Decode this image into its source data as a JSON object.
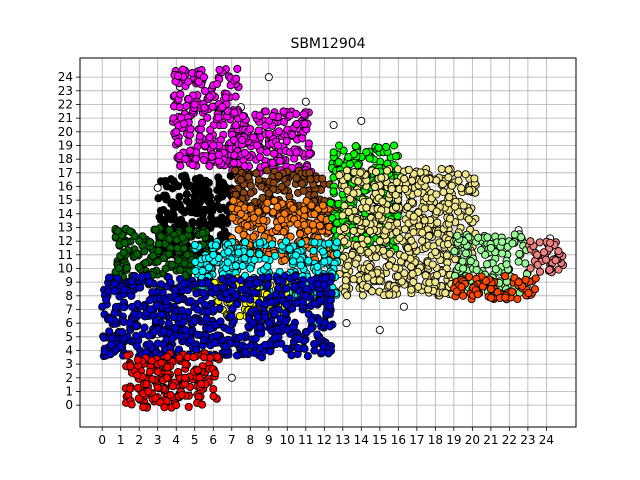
{
  "chart_data": {
    "type": "scatter",
    "title": "SBM12904",
    "xlabel": "",
    "ylabel": "",
    "xlim": [
      -1.2,
      25.6
    ],
    "ylim": [
      -1.6,
      25.4
    ],
    "x_ticks": [
      0,
      1,
      2,
      3,
      4,
      5,
      6,
      7,
      8,
      9,
      10,
      11,
      12,
      13,
      14,
      15,
      16,
      17,
      18,
      19,
      20,
      21,
      22,
      23,
      24
    ],
    "y_ticks": [
      0,
      1,
      2,
      3,
      4,
      5,
      6,
      7,
      8,
      9,
      10,
      11,
      12,
      13,
      14,
      15,
      16,
      17,
      18,
      19,
      20,
      21,
      22,
      23,
      24
    ],
    "grid": true,
    "legend": "none",
    "marker": {
      "shape": "circle",
      "edge_color": "#000000"
    },
    "clusters": [
      {
        "color": "#ff00ff",
        "x": [
          3.8,
          7.4
        ],
        "y": [
          17.5,
          24.6
        ],
        "points": [
          [
            4.0,
            20
          ],
          [
            5.0,
            22
          ],
          [
            6.2,
            23.5
          ],
          [
            7.3,
            24.6
          ],
          [
            4.5,
            18
          ],
          [
            6,
            19
          ],
          [
            6.8,
            21.5
          ],
          [
            5.5,
            24
          ],
          [
            4.2,
            21.8
          ]
        ]
      },
      {
        "color": "#ff00ff",
        "x": [
          7.0,
          11.3
        ],
        "y": [
          16.8,
          21.5
        ],
        "points": [
          [
            8,
            20.2
          ],
          [
            9.5,
            19
          ],
          [
            10.5,
            18.5
          ],
          [
            8.8,
            17.5
          ],
          [
            11,
            17.2
          ]
        ]
      },
      {
        "color": "#000000",
        "x": [
          3.0,
          7.0
        ],
        "y": [
          10.8,
          16.8
        ],
        "points": [
          [
            3.5,
            16
          ],
          [
            5,
            15
          ],
          [
            6.2,
            13.5
          ],
          [
            4.2,
            12
          ],
          [
            6,
            11.2
          ]
        ]
      },
      {
        "color": "#8b4513",
        "x": [
          7.0,
          12.3
        ],
        "y": [
          14.0,
          17.2
        ],
        "points": [
          [
            7.5,
            16.5
          ],
          [
            9,
            15.5
          ],
          [
            10.8,
            16.2
          ],
          [
            12,
            14.5
          ]
        ]
      },
      {
        "color": "#ff7f0e",
        "x": [
          7.0,
          12.8
        ],
        "y": [
          10.3,
          15.0
        ],
        "points": [
          [
            7.5,
            14
          ],
          [
            9.5,
            13
          ],
          [
            11,
            12
          ],
          [
            12.5,
            11
          ]
        ]
      },
      {
        "color": "#00ff00",
        "x": [
          12.3,
          16.0
        ],
        "y": [
          11.2,
          19.0
        ],
        "points": [
          [
            12.5,
            18.5
          ],
          [
            14,
            17
          ],
          [
            15.5,
            15
          ],
          [
            13.5,
            13
          ],
          [
            12.8,
            11.8
          ]
        ]
      },
      {
        "color": "#f0e68c",
        "x": [
          12.8,
          20.2
        ],
        "y": [
          8.0,
          17.3
        ],
        "points": [
          [
            13.5,
            11
          ],
          [
            15,
            12
          ],
          [
            16.5,
            14.5
          ],
          [
            17.5,
            16.5
          ],
          [
            19,
            12
          ],
          [
            20,
            10
          ],
          [
            18,
            9
          ]
        ]
      },
      {
        "color": "#98fb98",
        "x": [
          19.0,
          23.0
        ],
        "y": [
          8.2,
          12.5
        ],
        "points": [
          [
            19.5,
            10
          ],
          [
            21,
            11.5
          ],
          [
            22.5,
            10.5
          ],
          [
            20,
            8.5
          ]
        ]
      },
      {
        "color": "#ff4500",
        "x": [
          19.0,
          23.5
        ],
        "y": [
          7.7,
          9.5
        ],
        "points": [
          [
            19.5,
            8
          ],
          [
            21,
            8.5
          ],
          [
            22.5,
            9
          ]
        ]
      },
      {
        "color": "#f08080",
        "x": [
          23.0,
          25.0
        ],
        "y": [
          9.7,
          12.0
        ],
        "points": [
          [
            23.5,
            11
          ],
          [
            24.5,
            10.6
          ]
        ]
      },
      {
        "color": "#006400",
        "x": [
          0.7,
          5.8
        ],
        "y": [
          8.5,
          13.0
        ],
        "points": [
          [
            1,
            9
          ],
          [
            2,
            12
          ],
          [
            3,
            10.5
          ],
          [
            4.5,
            9.5
          ]
        ]
      },
      {
        "color": "#00ffff",
        "x": [
          5.0,
          12.7
        ],
        "y": [
          8.0,
          12.0
        ],
        "points": [
          [
            6,
            11
          ],
          [
            8,
            10
          ],
          [
            10,
            9.5
          ],
          [
            12,
            10.5
          ],
          [
            11.5,
            6
          ]
        ]
      },
      {
        "color": "#ffff00",
        "x": [
          6.0,
          10.0
        ],
        "y": [
          6.5,
          9.3
        ],
        "points": [
          [
            6.5,
            8.5
          ],
          [
            8,
            7.5
          ],
          [
            9.5,
            8.5
          ]
        ]
      },
      {
        "color": "#0000cd",
        "x": [
          0.0,
          12.5
        ],
        "y": [
          3.5,
          9.5
        ],
        "points": [
          [
            0,
            7.2
          ],
          [
            1.5,
            6
          ],
          [
            3,
            4.5
          ],
          [
            4.5,
            5.5
          ],
          [
            6,
            7
          ],
          [
            7.5,
            5
          ],
          [
            9,
            6
          ],
          [
            11,
            8
          ],
          [
            12,
            8.8
          ]
        ]
      },
      {
        "color": "#ff0000",
        "x": [
          1.2,
          6.3
        ],
        "y": [
          -0.2,
          3.8
        ],
        "points": [
          [
            1.5,
            1.2
          ],
          [
            2.5,
            1
          ],
          [
            3.5,
            2
          ],
          [
            4.5,
            3
          ],
          [
            5.5,
            3.5
          ],
          [
            4,
            0
          ]
        ]
      }
    ],
    "outliers": [
      [
        4.2,
        23.3
      ],
      [
        7.5,
        21.8
      ],
      [
        9.0,
        24.0
      ],
      [
        11.0,
        22.2
      ],
      [
        12.5,
        20.5
      ],
      [
        14.0,
        20.8
      ],
      [
        15.0,
        18.8
      ],
      [
        18.3,
        16.5
      ],
      [
        1.0,
        12.7
      ],
      [
        3.0,
        15.9
      ],
      [
        13.2,
        6.0
      ],
      [
        15.0,
        5.5
      ],
      [
        16.3,
        7.2
      ],
      [
        22.5,
        12.8
      ],
      [
        24.2,
        12.2
      ],
      [
        7.0,
        2.0
      ],
      [
        5.0,
        1.0
      ],
      [
        3.0,
        5.2
      ]
    ]
  }
}
